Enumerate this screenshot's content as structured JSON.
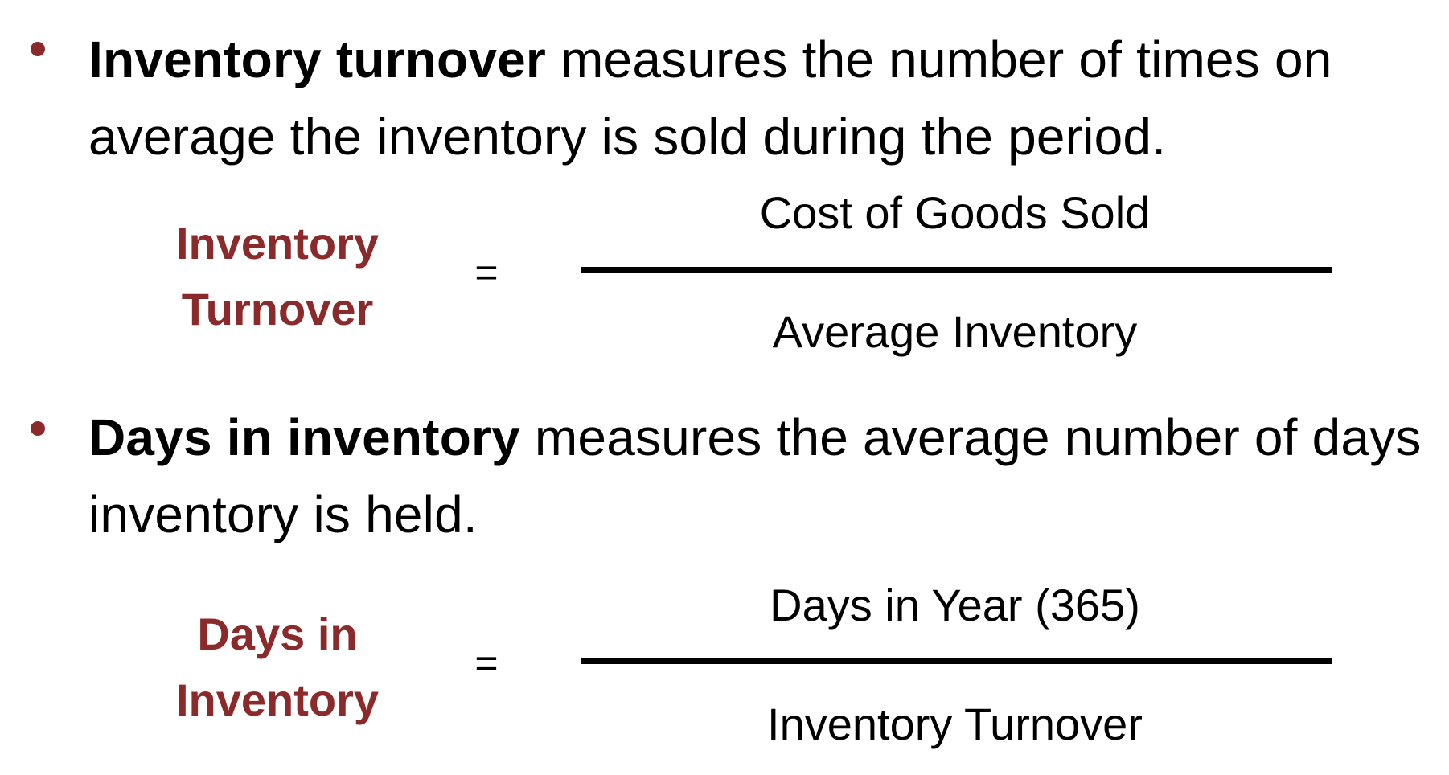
{
  "colors": {
    "accent": "#8b2a2a",
    "text": "#000000",
    "bullet": "#8b2a2a",
    "bar": "#000000"
  },
  "bullets": [
    {
      "term": "Inventory turnover",
      "definition": " measures the number of times on average the inventory is sold during the period."
    },
    {
      "term": "Days in inventory",
      "definition": " measures the average number of days inventory is held."
    }
  ],
  "formulas": [
    {
      "label_line1": "Inventory",
      "label_line2": "Turnover",
      "equals": "=",
      "numerator": "Cost of Goods Sold",
      "denominator": "Average Inventory"
    },
    {
      "label_line1": "Days in",
      "label_line2": "Inventory",
      "equals": "=",
      "numerator": "Days in Year (365)",
      "denominator": "Inventory Turnover"
    }
  ]
}
